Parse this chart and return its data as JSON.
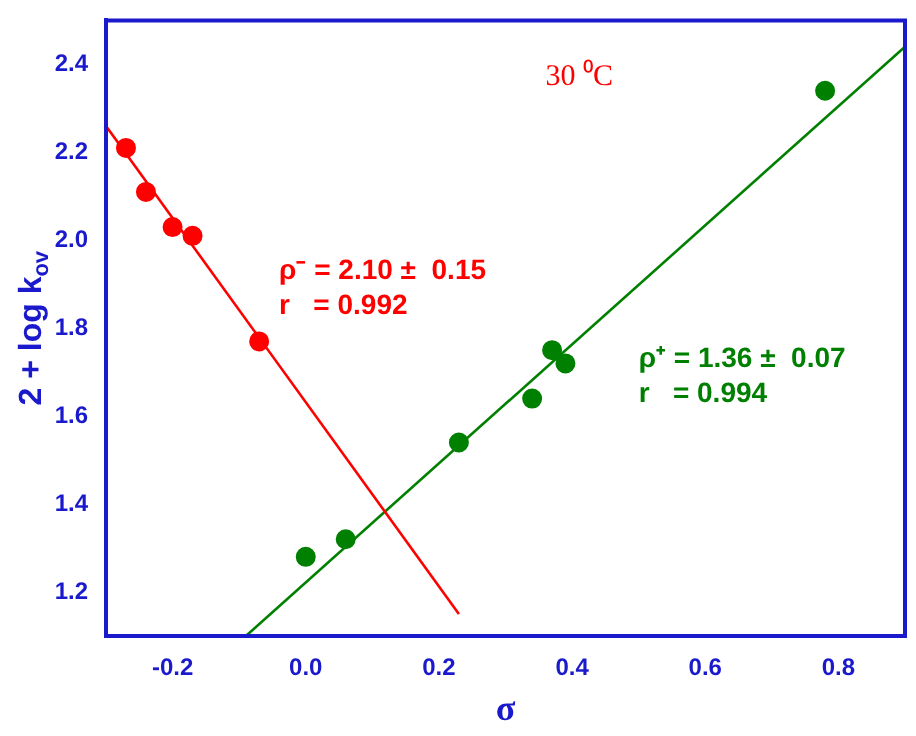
{
  "chart_data": {
    "type": "scatter",
    "xlabel": "σ",
    "ylabel": "2 + log k$_{ov}$",
    "xlim": [
      -0.3,
      0.9
    ],
    "xticks": [
      -0.2,
      {
        "value": 0,
        "label": "0.0"
      },
      0.2,
      0.4,
      0.6,
      0.8
    ],
    "ylim": [
      1.1,
      2.5
    ],
    "yticks": [
      1.2,
      1.4,
      1.6,
      1.8,
      {
        "value": 2,
        "label": "2.0"
      },
      2.2,
      2.4
    ],
    "grid": false,
    "legend": false,
    "series": [
      {
        "marker": "circle",
        "color": "#ff0000",
        "x": [
          -0.27,
          -0.24,
          -0.2,
          -0.17,
          -0.07
        ],
        "values": [
          2.21,
          2.11,
          2.03,
          2.01,
          1.77
        ]
      },
      {
        "marker": "circle",
        "color": "#008000",
        "x": [
          0.0,
          0.06,
          0.23,
          0.34,
          0.37,
          0.39,
          0.78
        ],
        "values": [
          1.28,
          1.32,
          1.54,
          1.64,
          1.75,
          1.72,
          2.34
        ]
      },
      {
        "type": "line",
        "marker": "none",
        "color": "#ff0000",
        "x": [
          -0.3,
          0.23
        ],
        "values": [
          2.26,
          1.15
        ]
      },
      {
        "type": "line",
        "marker": "none",
        "color": "#008000",
        "x": [
          -0.09,
          0.9
        ],
        "values": [
          1.1,
          2.44
        ]
      }
    ],
    "annotations": [
      "30 ⁰C",
      "ρ⁻ = 2.10 ±  0.15",
      "r   = 0.992",
      "ρ⁺ = 1.36 ±  0.07",
      "r   = 0.994"
    ]
  }
}
